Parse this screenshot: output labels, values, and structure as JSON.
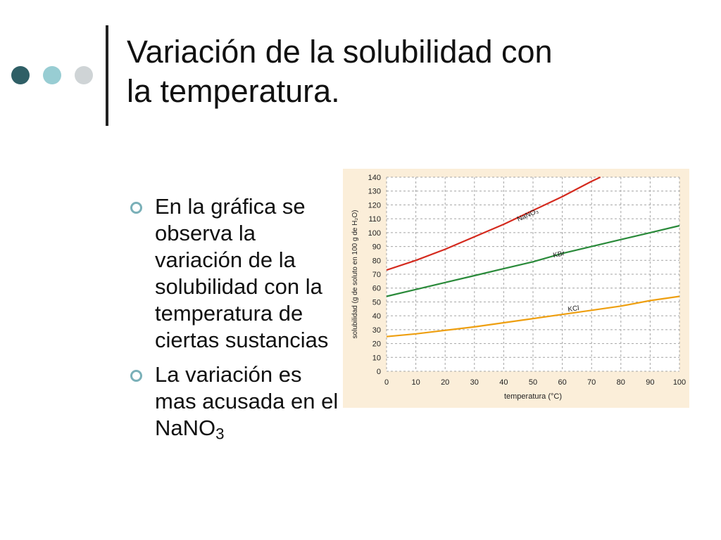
{
  "slide": {
    "title_lines": [
      "Variación de la solubilidad con",
      "la temperatura."
    ],
    "bullets": [
      {
        "lines": [
          "En la gráfica se",
          "observa la",
          "variación de la",
          "solubilidad con la",
          "temperatura de",
          "ciertas sustancias"
        ]
      },
      {
        "lines": [
          "La variación es",
          "mas acusada en el"
        ],
        "formula_base": "NaNO",
        "formula_sub": "3"
      }
    ]
  },
  "colors": {
    "dot_dark": "#2f5f66",
    "dot_mid": "#98cdd3",
    "dot_light": "#cfd4d6",
    "bullet_ring": "#7ab0b8",
    "chart_background": "#fbeed9",
    "grid": "#a4a4a4"
  },
  "chart_data": {
    "type": "line",
    "xlabel": "temperatura (°C)",
    "ylabel": "solubilidad (g de soluto en 100 g de H₂O)",
    "xlim": [
      0,
      100
    ],
    "ylim": [
      0,
      140
    ],
    "xticks": [
      0,
      10,
      20,
      30,
      40,
      50,
      60,
      70,
      80,
      90,
      100
    ],
    "yticks": [
      0,
      10,
      20,
      30,
      40,
      50,
      60,
      70,
      80,
      90,
      100,
      110,
      120,
      130,
      140
    ],
    "grid": true,
    "series": [
      {
        "name": "NaNO₃",
        "color": "#d42a1e",
        "x": [
          0,
          10,
          20,
          30,
          40,
          50,
          60,
          70,
          73
        ],
        "y": [
          73,
          80,
          88,
          97,
          106,
          116,
          126,
          137,
          140
        ]
      },
      {
        "name": "KBr",
        "color": "#2a8a3a",
        "x": [
          0,
          10,
          20,
          30,
          40,
          50,
          60,
          70,
          80,
          90,
          100
        ],
        "y": [
          54,
          59,
          64,
          69,
          74,
          79,
          85,
          90,
          95,
          100,
          105
        ]
      },
      {
        "name": "KCl",
        "color": "#ee9f10",
        "x": [
          0,
          10,
          20,
          30,
          40,
          50,
          60,
          70,
          80,
          90,
          100
        ],
        "y": [
          25,
          27,
          29.5,
          32,
          35,
          38,
          41,
          44,
          47,
          51,
          54
        ]
      }
    ]
  }
}
